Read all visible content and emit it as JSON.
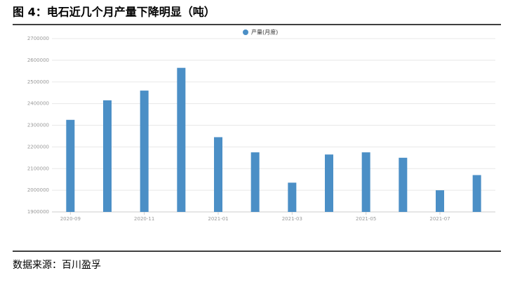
{
  "title": "图 4：电石近几个月产量下降明显（吨）",
  "source": "数据来源：百川盈孚",
  "chart_data": {
    "type": "bar",
    "categories": [
      "2020-09",
      null,
      "2020-11",
      null,
      "2021-01",
      null,
      "2021-03",
      null,
      "2021-05",
      null,
      "2021-07",
      null
    ],
    "series": [
      {
        "name": "产量(月度)",
        "color": "#4b8fc6",
        "values": [
          2325000,
          2415000,
          2460000,
          2565000,
          2245000,
          2175000,
          2035000,
          2165000,
          2175000,
          2150000,
          2000000,
          2070000
        ]
      }
    ],
    "ylim": [
      1900000,
      2700000
    ],
    "yticks": [
      1900000,
      2000000,
      2100000,
      2200000,
      2300000,
      2400000,
      2500000,
      2600000,
      2700000
    ],
    "grid": true,
    "legend": "top"
  }
}
